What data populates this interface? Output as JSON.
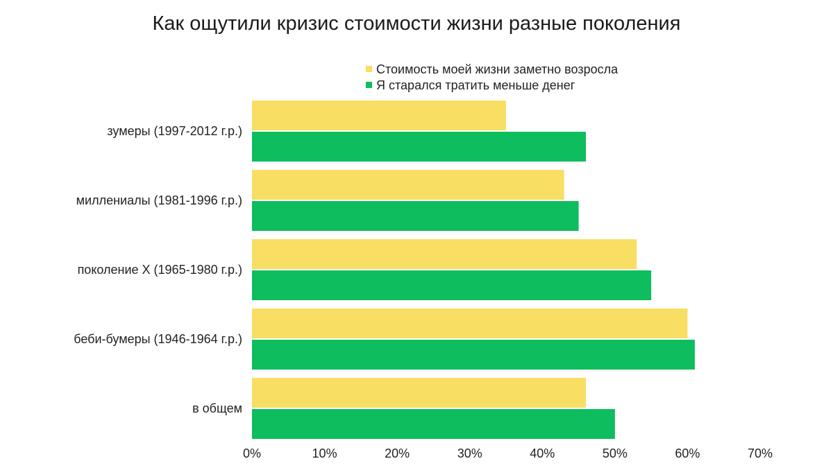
{
  "chart_data": {
    "type": "bar",
    "orientation": "horizontal",
    "title": "Как ощутили кризис стоимости жизни разные поколения",
    "categories": [
      "зумеры (1997-2012 г.р.)",
      "миллениалы (1981-1996 г.р.)",
      "поколение X (1965-1980 г.р.)",
      "беби-бумеры (1946-1964 г.р.)",
      "в общем"
    ],
    "series": [
      {
        "name": "Стоимость моей жизни заметно возросла",
        "color": "#F8DE62",
        "values": [
          35,
          43,
          53,
          60,
          46
        ]
      },
      {
        "name": "Я старался тратить меньше денег",
        "color": "#0DBD5E",
        "values": [
          46,
          45,
          55,
          61,
          50
        ]
      }
    ],
    "xlim": [
      0,
      70
    ],
    "xticks": [
      "0%",
      "10%",
      "20%",
      "30%",
      "40%",
      "50%",
      "60%",
      "70%"
    ],
    "xlabel": "",
    "ylabel": "",
    "grid": false,
    "legend_position": "top"
  }
}
